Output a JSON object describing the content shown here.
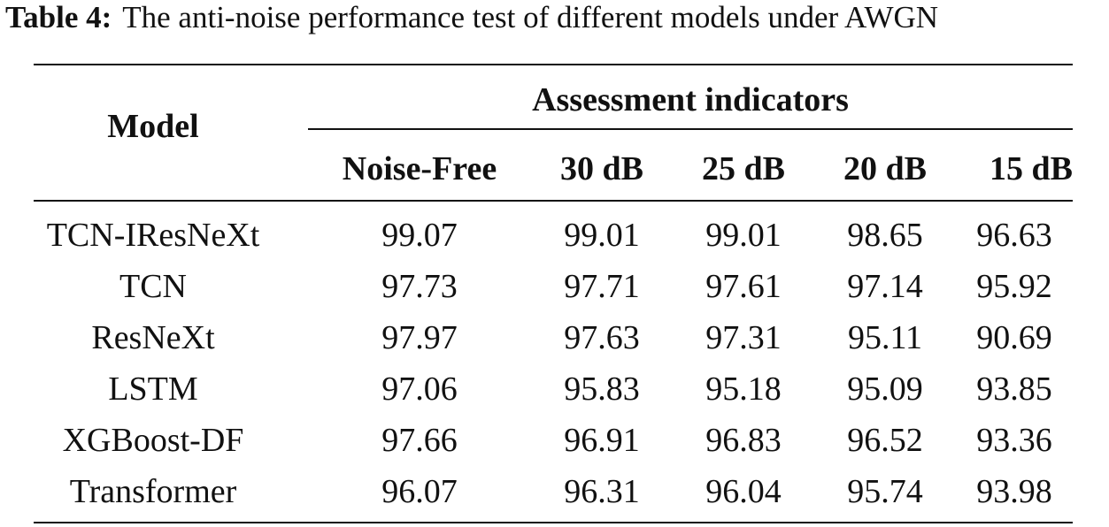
{
  "caption": {
    "label": "Table 4:",
    "text": "The anti-noise performance test of different models under AWGN"
  },
  "table": {
    "model_header": "Model",
    "group_header": "Assessment indicators",
    "columns": [
      "Noise-Free",
      "30 dB",
      "25 dB",
      "20 dB",
      "15 dB"
    ],
    "rows": [
      {
        "model": "TCN-IResNeXt",
        "values": [
          "99.07",
          "99.01",
          "99.01",
          "98.65",
          "96.63"
        ]
      },
      {
        "model": "TCN",
        "values": [
          "97.73",
          "97.71",
          "97.61",
          "97.14",
          "95.92"
        ]
      },
      {
        "model": "ResNeXt",
        "values": [
          "97.97",
          "97.63",
          "97.31",
          "95.11",
          "90.69"
        ]
      },
      {
        "model": "LSTM",
        "values": [
          "97.06",
          "95.83",
          "95.18",
          "95.09",
          "93.85"
        ]
      },
      {
        "model": "XGBoost-DF",
        "values": [
          "97.66",
          "96.91",
          "96.83",
          "96.52",
          "93.36"
        ]
      },
      {
        "model": "Transformer",
        "values": [
          "96.07",
          "96.31",
          "96.04",
          "95.74",
          "93.98"
        ]
      }
    ]
  }
}
